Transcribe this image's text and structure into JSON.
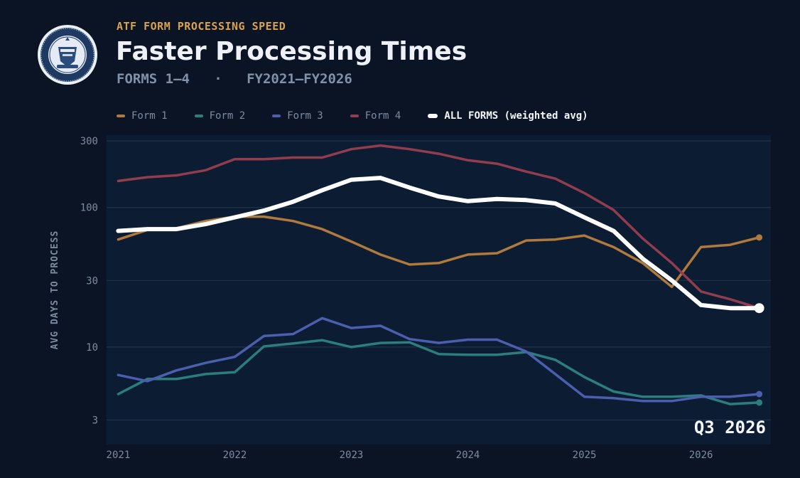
{
  "header": {
    "kicker": "ATF FORM PROCESSING SPEED",
    "title": "Faster Processing Times",
    "subtitle_forms": "FORMS 1–4",
    "subtitle_sep": "·",
    "subtitle_years": "FY2021–FY2026"
  },
  "icons": {
    "seal": "atf-seal-icon"
  },
  "stamp": "Q3 2026",
  "chart_data": {
    "type": "line",
    "title": "Faster Processing Times",
    "ylabel": "AVG DAYS TO PROCESS",
    "xlabel": "",
    "yscale": "log",
    "ylim": [
      2,
      330
    ],
    "xlim": [
      2020.9,
      2026.6
    ],
    "yticks": [
      300,
      100,
      30,
      10,
      3
    ],
    "xticks": [
      2021,
      2022,
      2023,
      2024,
      2025,
      2026
    ],
    "grid": true,
    "legend_position": "top",
    "x": [
      2021.0,
      2021.25,
      2021.5,
      2021.75,
      2022.0,
      2022.25,
      2022.5,
      2022.75,
      2023.0,
      2023.25,
      2023.5,
      2023.75,
      2024.0,
      2024.25,
      2024.5,
      2024.75,
      2025.0,
      2025.25,
      2025.5,
      2025.75,
      2026.0,
      2026.25,
      2026.5
    ],
    "series": [
      {
        "name": "Form 1",
        "color": "#b07a3c",
        "width": 3.5,
        "end_marker": true,
        "values": [
          59,
          69,
          71,
          80,
          86,
          86,
          80,
          70,
          57,
          46,
          39,
          40,
          46,
          47,
          58,
          59,
          63,
          52,
          40,
          27,
          52,
          54,
          61
        ]
      },
      {
        "name": "Form 2",
        "color": "#2b7e7e",
        "width": 3.5,
        "end_marker": true,
        "values": [
          4.6,
          5.9,
          5.9,
          6.4,
          6.6,
          10.1,
          10.6,
          11.2,
          10.0,
          10.7,
          10.8,
          8.9,
          8.8,
          8.8,
          9.2,
          8.1,
          6.1,
          4.8,
          4.4,
          4.4,
          4.5,
          3.9,
          4.0
        ]
      },
      {
        "name": "Form 3",
        "color": "#4b5fae",
        "width": 3.5,
        "end_marker": true,
        "values": [
          6.3,
          5.7,
          6.8,
          7.7,
          8.5,
          12.0,
          12.4,
          16.1,
          13.7,
          14.2,
          11.4,
          10.7,
          11.3,
          11.3,
          9.3,
          6.4,
          4.4,
          4.3,
          4.1,
          4.1,
          4.4,
          4.4,
          4.6
        ]
      },
      {
        "name": "Form 4",
        "color": "#923d4d",
        "width": 3.5,
        "end_marker": false,
        "values": [
          155,
          165,
          170,
          185,
          222,
          222,
          228,
          228,
          262,
          278,
          262,
          243,
          218,
          206,
          181,
          161,
          127,
          96,
          60,
          40,
          25,
          22,
          19
        ]
      },
      {
        "name": "ALL FORMS (weighted avg)",
        "color": "#ffffff",
        "width": 6,
        "end_marker": true,
        "values": [
          68,
          70,
          70,
          76,
          85,
          95,
          110,
          133,
          158,
          163,
          139,
          120,
          111,
          115,
          113,
          107,
          85,
          68,
          43,
          30,
          20,
          19,
          19
        ]
      }
    ]
  }
}
